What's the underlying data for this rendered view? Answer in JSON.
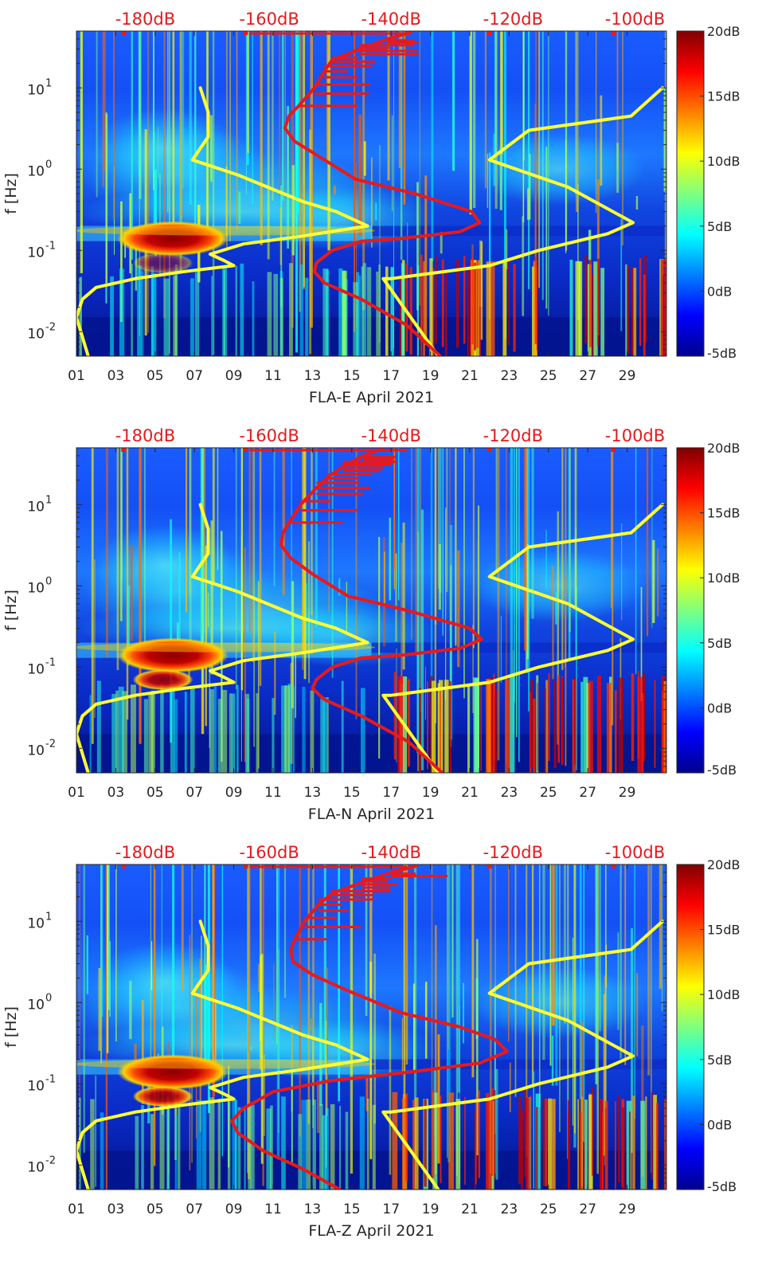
{
  "chart_data": [
    {
      "type": "heatmap",
      "station": "FLA-E",
      "xlabel": "FLA-E April 2021",
      "ylabel": "f [Hz]",
      "x_tick_labels": [
        "01",
        "03",
        "05",
        "07",
        "09",
        "11",
        "13",
        "15",
        "17",
        "19",
        "21",
        "23",
        "25",
        "27",
        "29"
      ],
      "x_tick_days": [
        1,
        3,
        5,
        7,
        9,
        11,
        13,
        15,
        17,
        19,
        21,
        23,
        25,
        27,
        29
      ],
      "xlim_days": [
        1,
        31
      ],
      "y_scale": "log",
      "ylim_hz": [
        0.005,
        50
      ],
      "y_ticks_hz": [
        0.01,
        0.1,
        1,
        10
      ],
      "y_tick_labels": [
        {
          "base": "10",
          "exp": "-2"
        },
        {
          "base": "10",
          "exp": "-1"
        },
        {
          "base": "10",
          "exp": "0"
        },
        {
          "base": "10",
          "exp": "1"
        }
      ],
      "top_axis_labels": [
        "-180dB",
        "-160dB",
        "-140dB",
        "-120dB",
        "-100dB"
      ],
      "top_axis_values_db": [
        -180,
        -160,
        -140,
        -120,
        -100
      ],
      "top_axis_day_positions": [
        4.5,
        10.8,
        17.0,
        23.2,
        29.4
      ],
      "colorbar": {
        "labels": [
          "20dB",
          "15dB",
          "10dB",
          "5dB",
          "0dB",
          "-5dB"
        ],
        "values": [
          20,
          15,
          10,
          5,
          0,
          -5
        ],
        "range": [
          -5,
          20
        ],
        "colormap": "jet"
      },
      "series": [
        {
          "name": "noise-model-yellow",
          "color": "#ffff33",
          "points": [
            [
              7.3,
              10
            ],
            [
              7.7,
              5
            ],
            [
              7.7,
              2.5
            ],
            [
              6.9,
              1.3
            ],
            [
              9.2,
              0.85
            ],
            [
              12.5,
              0.4
            ],
            [
              14.2,
              0.3
            ],
            [
              15.8,
              0.2
            ],
            [
              12.5,
              0.15
            ],
            [
              9.5,
              0.12
            ],
            [
              7.8,
              0.09
            ],
            [
              8.5,
              0.075
            ],
            [
              9.0,
              0.065
            ],
            [
              6.5,
              0.055
            ],
            [
              4.0,
              0.045
            ],
            [
              2.0,
              0.035
            ],
            [
              1.3,
              0.025
            ],
            [
              1.0,
              0.015
            ],
            [
              1.6,
              0.005
            ]
          ]
        },
        {
          "name": "noise-model-yellow-high",
          "color": "#ffff33",
          "points": [
            [
              30.8,
              10
            ],
            [
              29.2,
              4.5
            ],
            [
              24.0,
              3.0
            ],
            [
              22.0,
              1.3
            ],
            [
              26.0,
              0.6
            ],
            [
              29.3,
              0.22
            ],
            [
              28.0,
              0.16
            ],
            [
              24.5,
              0.1
            ],
            [
              22.0,
              0.065
            ],
            [
              17.0,
              0.045
            ],
            [
              16.6,
              0.045
            ],
            [
              19.4,
              0.005
            ]
          ]
        },
        {
          "name": "signal-psd-red",
          "color": "#e8191c",
          "points": [
            [
              18.0,
              48
            ],
            [
              16.8,
              40
            ],
            [
              15.4,
              30
            ],
            [
              14.0,
              22
            ],
            [
              13.6,
              16
            ],
            [
              13.1,
              10
            ],
            [
              12.3,
              6
            ],
            [
              11.8,
              4.5
            ],
            [
              11.6,
              3.2
            ],
            [
              12.1,
              2.2
            ],
            [
              13.4,
              1.4
            ],
            [
              15.2,
              0.75
            ],
            [
              18.2,
              0.5
            ],
            [
              21.1,
              0.3
            ],
            [
              21.5,
              0.22
            ],
            [
              20.5,
              0.17
            ],
            [
              17.5,
              0.14
            ],
            [
              15.5,
              0.13
            ],
            [
              14.0,
              0.1
            ],
            [
              13.2,
              0.07
            ],
            [
              13.1,
              0.055
            ],
            [
              13.6,
              0.04
            ],
            [
              15.5,
              0.025
            ],
            [
              17.8,
              0.012
            ],
            [
              19.5,
              0.005
            ]
          ]
        }
      ]
    },
    {
      "type": "heatmap",
      "station": "FLA-N",
      "xlabel": "FLA-N April 2021",
      "ylabel": "f [Hz]",
      "x_tick_labels": [
        "01",
        "03",
        "05",
        "07",
        "09",
        "11",
        "13",
        "15",
        "17",
        "19",
        "21",
        "23",
        "25",
        "27",
        "29"
      ],
      "x_tick_days": [
        1,
        3,
        5,
        7,
        9,
        11,
        13,
        15,
        17,
        19,
        21,
        23,
        25,
        27,
        29
      ],
      "xlim_days": [
        1,
        31
      ],
      "y_scale": "log",
      "ylim_hz": [
        0.005,
        50
      ],
      "y_ticks_hz": [
        0.01,
        0.1,
        1,
        10
      ],
      "y_tick_labels": [
        {
          "base": "10",
          "exp": "-2"
        },
        {
          "base": "10",
          "exp": "-1"
        },
        {
          "base": "10",
          "exp": "0"
        },
        {
          "base": "10",
          "exp": "1"
        }
      ],
      "top_axis_labels": [
        "-180dB",
        "-160dB",
        "-140dB",
        "-120dB",
        "-100dB"
      ],
      "top_axis_values_db": [
        -180,
        -160,
        -140,
        -120,
        -100
      ],
      "top_axis_day_positions": [
        4.5,
        10.8,
        17.0,
        23.2,
        29.4
      ],
      "colorbar": {
        "labels": [
          "20dB",
          "15dB",
          "10dB",
          "5dB",
          "0dB",
          "-5dB"
        ],
        "values": [
          20,
          15,
          10,
          5,
          0,
          -5
        ],
        "range": [
          -5,
          20
        ],
        "colormap": "jet"
      },
      "series": [
        {
          "name": "noise-model-yellow",
          "color": "#ffff33",
          "points": [
            [
              7.3,
              10
            ],
            [
              7.7,
              5
            ],
            [
              7.7,
              2.5
            ],
            [
              6.9,
              1.3
            ],
            [
              9.2,
              0.85
            ],
            [
              12.5,
              0.4
            ],
            [
              14.2,
              0.3
            ],
            [
              15.8,
              0.2
            ],
            [
              12.5,
              0.15
            ],
            [
              9.5,
              0.12
            ],
            [
              7.8,
              0.09
            ],
            [
              8.5,
              0.075
            ],
            [
              9.0,
              0.065
            ],
            [
              6.5,
              0.055
            ],
            [
              4.0,
              0.045
            ],
            [
              2.0,
              0.035
            ],
            [
              1.3,
              0.025
            ],
            [
              1.0,
              0.015
            ],
            [
              1.6,
              0.005
            ]
          ]
        },
        {
          "name": "noise-model-yellow-high",
          "color": "#ffff33",
          "points": [
            [
              30.8,
              10
            ],
            [
              29.2,
              4.5
            ],
            [
              24.0,
              3.0
            ],
            [
              22.0,
              1.3
            ],
            [
              26.0,
              0.6
            ],
            [
              29.3,
              0.22
            ],
            [
              28.0,
              0.16
            ],
            [
              24.5,
              0.1
            ],
            [
              22.0,
              0.065
            ],
            [
              17.0,
              0.045
            ],
            [
              16.6,
              0.045
            ],
            [
              19.4,
              0.005
            ]
          ]
        },
        {
          "name": "signal-psd-red",
          "color": "#e8191c",
          "points": [
            [
              16.5,
              48
            ],
            [
              15.6,
              40
            ],
            [
              14.6,
              30
            ],
            [
              13.8,
              22
            ],
            [
              13.2,
              16
            ],
            [
              12.4,
              10
            ],
            [
              11.8,
              6
            ],
            [
              11.5,
              4.5
            ],
            [
              11.4,
              3.2
            ],
            [
              11.9,
              2.2
            ],
            [
              13.0,
              1.4
            ],
            [
              14.8,
              0.75
            ],
            [
              17.8,
              0.5
            ],
            [
              21.0,
              0.3
            ],
            [
              21.6,
              0.22
            ],
            [
              20.5,
              0.17
            ],
            [
              17.5,
              0.14
            ],
            [
              15.5,
              0.13
            ],
            [
              14.0,
              0.1
            ],
            [
              13.2,
              0.07
            ],
            [
              13.0,
              0.055
            ],
            [
              13.6,
              0.04
            ],
            [
              15.5,
              0.025
            ],
            [
              17.9,
              0.012
            ],
            [
              19.6,
              0.005
            ]
          ]
        }
      ]
    },
    {
      "type": "heatmap",
      "station": "FLA-Z",
      "xlabel": "FLA-Z April 2021",
      "ylabel": "f [Hz]",
      "x_tick_labels": [
        "01",
        "03",
        "05",
        "07",
        "09",
        "11",
        "13",
        "15",
        "17",
        "19",
        "21",
        "23",
        "25",
        "27",
        "29"
      ],
      "x_tick_days": [
        1,
        3,
        5,
        7,
        9,
        11,
        13,
        15,
        17,
        19,
        21,
        23,
        25,
        27,
        29
      ],
      "xlim_days": [
        1,
        31
      ],
      "y_scale": "log",
      "ylim_hz": [
        0.005,
        50
      ],
      "y_ticks_hz": [
        0.01,
        0.1,
        1,
        10
      ],
      "y_tick_labels": [
        {
          "base": "10",
          "exp": "-2"
        },
        {
          "base": "10",
          "exp": "-1"
        },
        {
          "base": "10",
          "exp": "0"
        },
        {
          "base": "10",
          "exp": "1"
        }
      ],
      "top_axis_labels": [
        "-180dB",
        "-160dB",
        "-140dB",
        "-120dB",
        "-100dB"
      ],
      "top_axis_values_db": [
        -180,
        -160,
        -140,
        -120,
        -100
      ],
      "top_axis_day_positions": [
        4.5,
        10.8,
        17.0,
        23.2,
        29.4
      ],
      "colorbar": {
        "labels": [
          "20dB",
          "15dB",
          "10dB",
          "5dB",
          "0dB",
          "-5dB"
        ],
        "values": [
          20,
          15,
          10,
          5,
          0,
          -5
        ],
        "range": [
          -5,
          20
        ],
        "colormap": "jet"
      },
      "series": [
        {
          "name": "noise-model-yellow",
          "color": "#ffff33",
          "points": [
            [
              7.3,
              10
            ],
            [
              7.7,
              5
            ],
            [
              7.7,
              2.5
            ],
            [
              6.9,
              1.3
            ],
            [
              9.2,
              0.85
            ],
            [
              12.5,
              0.4
            ],
            [
              14.2,
              0.3
            ],
            [
              15.8,
              0.2
            ],
            [
              12.5,
              0.15
            ],
            [
              9.5,
              0.12
            ],
            [
              7.8,
              0.09
            ],
            [
              8.5,
              0.075
            ],
            [
              9.0,
              0.065
            ],
            [
              6.5,
              0.055
            ],
            [
              4.0,
              0.045
            ],
            [
              2.0,
              0.035
            ],
            [
              1.3,
              0.025
            ],
            [
              1.0,
              0.015
            ],
            [
              1.6,
              0.005
            ]
          ]
        },
        {
          "name": "noise-model-yellow-high",
          "color": "#ffff33",
          "points": [
            [
              30.8,
              10
            ],
            [
              29.2,
              4.5
            ],
            [
              24.0,
              3.0
            ],
            [
              22.0,
              1.3
            ],
            [
              26.0,
              0.6
            ],
            [
              29.3,
              0.22
            ],
            [
              28.0,
              0.16
            ],
            [
              24.5,
              0.1
            ],
            [
              22.0,
              0.065
            ],
            [
              17.0,
              0.045
            ],
            [
              16.6,
              0.045
            ],
            [
              19.4,
              0.005
            ]
          ]
        },
        {
          "name": "signal-psd-red",
          "color": "#e8191c",
          "points": [
            [
              18.3,
              48
            ],
            [
              17.0,
              40
            ],
            [
              15.5,
              30
            ],
            [
              14.0,
              22
            ],
            [
              13.3,
              16
            ],
            [
              12.6,
              10
            ],
            [
              12.1,
              6
            ],
            [
              11.9,
              4.5
            ],
            [
              12.0,
              3.2
            ],
            [
              13.0,
              2.2
            ],
            [
              14.8,
              1.4
            ],
            [
              17.5,
              0.75
            ],
            [
              20.5,
              0.5
            ],
            [
              22.3,
              0.35
            ],
            [
              22.9,
              0.25
            ],
            [
              21.5,
              0.18
            ],
            [
              18.0,
              0.14
            ],
            [
              14.0,
              0.11
            ],
            [
              11.0,
              0.08
            ],
            [
              9.5,
              0.05
            ],
            [
              8.9,
              0.035
            ],
            [
              9.2,
              0.025
            ],
            [
              10.5,
              0.015
            ],
            [
              12.5,
              0.009
            ],
            [
              14.4,
              0.005
            ]
          ]
        }
      ]
    }
  ]
}
